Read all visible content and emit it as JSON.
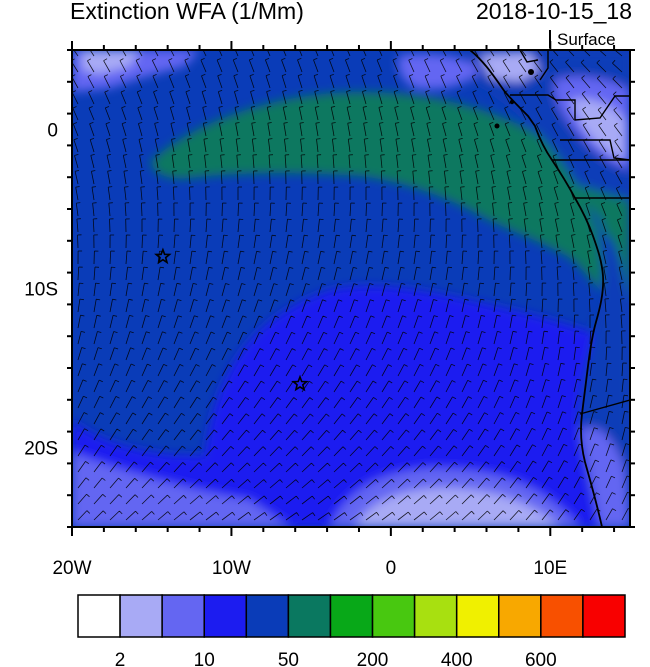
{
  "header": {
    "title": "Extinction WFA (1/Mm)",
    "datetime": "2018-10-15_18",
    "level": "Surface"
  },
  "map": {
    "lon_range": [
      -20,
      15
    ],
    "lat_range": [
      -25,
      5
    ],
    "x_ticks": [
      {
        "value": -20,
        "label": "20W"
      },
      {
        "value": -10,
        "label": "10W"
      },
      {
        "value": 0,
        "label": "0"
      },
      {
        "value": 10,
        "label": "10E"
      }
    ],
    "y_ticks": [
      {
        "value": 0,
        "label": "0"
      },
      {
        "value": -10,
        "label": "10S"
      },
      {
        "value": -20,
        "label": "20S"
      }
    ],
    "markers": [
      {
        "name": "star",
        "lon": -14.3,
        "lat": -8.0
      },
      {
        "name": "star",
        "lon": -5.7,
        "lat": -16.0
      }
    ],
    "overlay": "wind-barbs"
  },
  "colorbar": {
    "colors": [
      "#ffffff",
      "#a8aaf5",
      "#6466f2",
      "#1c1cf0",
      "#0a3cb8",
      "#0a7860",
      "#08a818",
      "#48c810",
      "#a8e010",
      "#f0f000",
      "#f8a800",
      "#f85000",
      "#f80000"
    ],
    "labels": [
      {
        "boundary": 1,
        "text": "2"
      },
      {
        "boundary": 3,
        "text": "10"
      },
      {
        "boundary": 5,
        "text": "50"
      },
      {
        "boundary": 7,
        "text": "200"
      },
      {
        "boundary": 9,
        "text": "400"
      },
      {
        "boundary": 11,
        "text": "600"
      }
    ]
  }
}
